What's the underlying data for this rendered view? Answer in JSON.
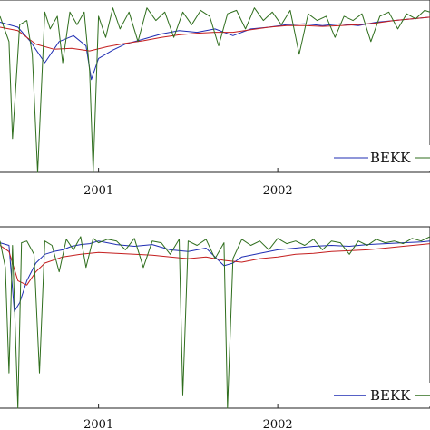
{
  "chart_data": [
    {
      "type": "line",
      "x_tick_labels": [
        "2001",
        "2002"
      ],
      "x_ticks": [
        2001.0,
        2002.0
      ],
      "xlim": [
        2000.45,
        2002.85
      ],
      "ylim": [
        -1.0,
        1.0
      ],
      "legend": {
        "placement": "bottom-right",
        "entries": [
          "BEKK"
        ]
      },
      "series": [
        {
          "name": "BEKK",
          "color": "#1f2db3",
          "x": [
            2000.45,
            2000.55,
            2000.62,
            2000.7,
            2000.78,
            2000.86,
            2000.93,
            2000.96,
            2001.0,
            2001.08,
            2001.15,
            2001.25,
            2001.35,
            2001.45,
            2001.55,
            2001.65,
            2001.75,
            2001.85,
            2001.95,
            2002.05,
            2002.15,
            2002.25,
            2002.35,
            2002.45,
            2002.55,
            2002.65,
            2002.75,
            2002.85
          ],
          "y": [
            0.78,
            0.72,
            0.55,
            0.3,
            0.55,
            0.62,
            0.5,
            0.1,
            0.35,
            0.45,
            0.52,
            0.58,
            0.64,
            0.68,
            0.66,
            0.7,
            0.62,
            0.7,
            0.72,
            0.75,
            0.76,
            0.74,
            0.76,
            0.74,
            0.78,
            0.8,
            0.82,
            0.84
          ]
        },
        {
          "color": "#c41e1e",
          "x": [
            2000.45,
            2000.55,
            2000.65,
            2000.75,
            2000.85,
            2000.95,
            2001.05,
            2001.15,
            2001.25,
            2001.35,
            2001.45,
            2001.55,
            2001.65,
            2001.75,
            2001.85,
            2001.95,
            2002.05,
            2002.15,
            2002.25,
            2002.35,
            2002.45,
            2002.55,
            2002.65,
            2002.75,
            2002.85
          ],
          "y": [
            0.72,
            0.68,
            0.52,
            0.46,
            0.47,
            0.44,
            0.49,
            0.53,
            0.56,
            0.6,
            0.63,
            0.65,
            0.66,
            0.66,
            0.69,
            0.72,
            0.74,
            0.74,
            0.73,
            0.74,
            0.75,
            0.77,
            0.8,
            0.82,
            0.84
          ]
        },
        {
          "color": "#2f6e1d",
          "x": [
            2000.45,
            2000.5,
            2000.52,
            2000.56,
            2000.6,
            2000.63,
            2000.66,
            2000.7,
            2000.73,
            2000.77,
            2000.8,
            2000.84,
            2000.88,
            2000.92,
            2000.95,
            2000.97,
            2001.0,
            2001.04,
            2001.08,
            2001.12,
            2001.17,
            2001.22,
            2001.27,
            2001.32,
            2001.37,
            2001.42,
            2001.47,
            2001.52,
            2001.57,
            2001.62,
            2001.67,
            2001.72,
            2001.77,
            2001.82,
            2001.87,
            2001.92,
            2001.97,
            2002.02,
            2002.07,
            2002.12,
            2002.17,
            2002.22,
            2002.27,
            2002.32,
            2002.37,
            2002.42,
            2002.47,
            2002.52,
            2002.57,
            2002.62,
            2002.67,
            2002.72,
            2002.77,
            2002.82,
            2002.85
          ],
          "y": [
            0.85,
            0.55,
            -0.6,
            0.75,
            0.8,
            0.4,
            -1.0,
            0.9,
            0.7,
            0.85,
            0.3,
            0.9,
            0.75,
            0.9,
            0.2,
            -1.0,
            0.85,
            0.6,
            0.95,
            0.7,
            0.9,
            0.55,
            0.95,
            0.8,
            0.9,
            0.6,
            0.9,
            0.75,
            0.92,
            0.85,
            0.5,
            0.88,
            0.92,
            0.7,
            0.95,
            0.8,
            0.9,
            0.75,
            0.92,
            0.4,
            0.88,
            0.8,
            0.85,
            0.6,
            0.85,
            0.8,
            0.88,
            0.55,
            0.85,
            0.9,
            0.7,
            0.88,
            0.82,
            0.92,
            0.9
          ]
        }
      ]
    },
    {
      "type": "line",
      "x_tick_labels": [
        "2001",
        "2002"
      ],
      "x_ticks": [
        2001.0,
        2002.0
      ],
      "xlim": [
        2000.45,
        2002.85
      ],
      "ylim": [
        -1.0,
        1.0
      ],
      "legend": {
        "placement": "bottom-right",
        "entries": [
          "BEKK"
        ]
      },
      "series": [
        {
          "name": "BEKK",
          "color": "#1f2db3",
          "x": [
            2000.45,
            2000.5,
            2000.53,
            2000.56,
            2000.6,
            2000.65,
            2000.7,
            2000.75,
            2000.8,
            2000.85,
            2000.9,
            2000.95,
            2001.0,
            2001.1,
            2001.2,
            2001.3,
            2001.4,
            2001.5,
            2001.6,
            2001.7,
            2001.75,
            2001.8,
            2001.9,
            2002.0,
            2002.1,
            2002.2,
            2002.3,
            2002.4,
            2002.5,
            2002.6,
            2002.7,
            2002.8,
            2002.85
          ],
          "y": [
            0.88,
            0.85,
            0.1,
            0.2,
            0.45,
            0.65,
            0.75,
            0.78,
            0.8,
            0.84,
            0.86,
            0.87,
            0.9,
            0.86,
            0.84,
            0.86,
            0.8,
            0.78,
            0.82,
            0.62,
            0.65,
            0.72,
            0.76,
            0.8,
            0.82,
            0.84,
            0.85,
            0.84,
            0.86,
            0.87,
            0.88,
            0.89,
            0.9
          ]
        },
        {
          "color": "#c41e1e",
          "x": [
            2000.45,
            2000.5,
            2000.55,
            2000.6,
            2000.65,
            2000.7,
            2000.8,
            2000.9,
            2001.0,
            2001.1,
            2001.2,
            2001.3,
            2001.4,
            2001.5,
            2001.6,
            2001.7,
            2001.8,
            2001.9,
            2002.0,
            2002.1,
            2002.2,
            2002.3,
            2002.4,
            2002.5,
            2002.6,
            2002.7,
            2002.8,
            2002.85
          ],
          "y": [
            0.85,
            0.78,
            0.45,
            0.4,
            0.55,
            0.65,
            0.72,
            0.75,
            0.77,
            0.76,
            0.75,
            0.74,
            0.72,
            0.7,
            0.72,
            0.68,
            0.66,
            0.7,
            0.72,
            0.75,
            0.76,
            0.78,
            0.79,
            0.8,
            0.82,
            0.84,
            0.86,
            0.87
          ]
        },
        {
          "color": "#2f6e1d",
          "x": [
            2000.45,
            2000.48,
            2000.5,
            2000.52,
            2000.55,
            2000.57,
            2000.6,
            2000.64,
            2000.67,
            2000.7,
            2000.74,
            2000.78,
            2000.82,
            2000.86,
            2000.9,
            2000.93,
            2000.97,
            2001.0,
            2001.05,
            2001.1,
            2001.15,
            2001.2,
            2001.25,
            2001.3,
            2001.35,
            2001.4,
            2001.45,
            2001.47,
            2001.5,
            2001.55,
            2001.6,
            2001.65,
            2001.7,
            2001.72,
            2001.75,
            2001.8,
            2001.85,
            2001.9,
            2001.95,
            2002.0,
            2002.05,
            2002.1,
            2002.15,
            2002.2,
            2002.25,
            2002.3,
            2002.35,
            2002.4,
            2002.45,
            2002.5,
            2002.55,
            2002.6,
            2002.65,
            2002.7,
            2002.75,
            2002.8,
            2002.85
          ],
          "y": [
            0.9,
            0.6,
            -0.6,
            0.85,
            -1.0,
            0.88,
            0.9,
            0.75,
            -0.6,
            0.9,
            0.85,
            0.55,
            0.92,
            0.8,
            0.95,
            0.6,
            0.93,
            0.88,
            0.92,
            0.9,
            0.8,
            0.93,
            0.6,
            0.9,
            0.88,
            0.75,
            0.92,
            -0.85,
            0.9,
            0.85,
            0.92,
            0.7,
            0.88,
            -1.0,
            0.7,
            0.92,
            0.85,
            0.9,
            0.8,
            0.93,
            0.87,
            0.9,
            0.85,
            0.92,
            0.8,
            0.9,
            0.88,
            0.75,
            0.9,
            0.85,
            0.92,
            0.88,
            0.9,
            0.87,
            0.93,
            0.9,
            0.95
          ]
        }
      ]
    }
  ]
}
